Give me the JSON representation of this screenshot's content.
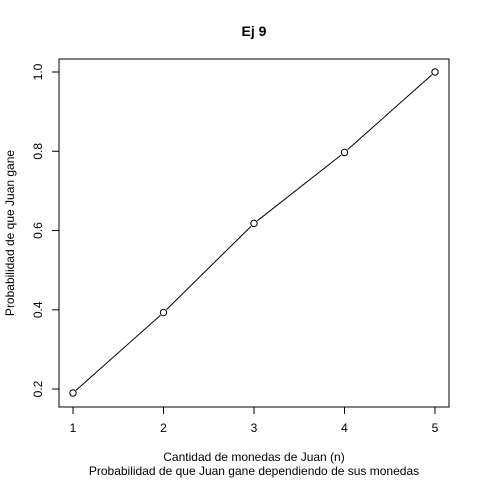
{
  "chart_data": {
    "type": "line",
    "title": "Ej 9",
    "xlabel": "Cantidad de monedas de Juan (n)",
    "subtitle": "Probabilidad de que Juan gane dependiendo de sus monedas",
    "ylabel": "Probabilidad de que Juan gane",
    "x": [
      1,
      2,
      3,
      4,
      5
    ],
    "series": [
      {
        "values": [
          0.19,
          0.393,
          0.618,
          0.797,
          1.0
        ]
      }
    ],
    "xlim": [
      1,
      5
    ],
    "ylim": [
      0.19,
      1.0
    ],
    "xticks": [
      "1",
      "2",
      "3",
      "4",
      "5"
    ],
    "yticks": [
      "0.2",
      "0.4",
      "0.6",
      "0.8",
      "1.0"
    ],
    "markers": "open-circle",
    "grid": false,
    "colors": {
      "line": "#000000",
      "marker": "#000000"
    }
  }
}
